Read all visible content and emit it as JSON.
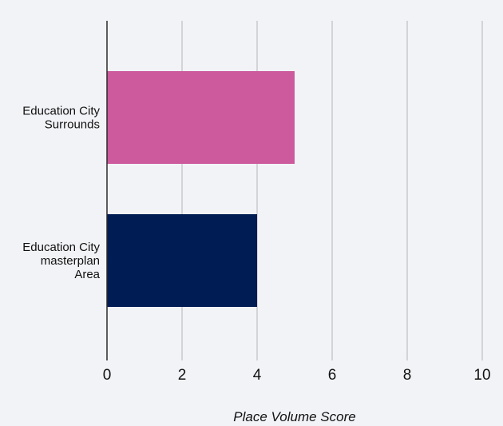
{
  "chart_data": {
    "type": "bar",
    "orientation": "horizontal",
    "categories": [
      [
        "Education City",
        "Surrounds"
      ],
      [
        "Education City",
        "masterplan",
        "Area"
      ]
    ],
    "values": [
      5,
      4
    ],
    "bar_colors": [
      "#cc5a9c",
      "#001c54"
    ],
    "xlabel": "Place Volume Score",
    "xlim": [
      0,
      10
    ],
    "xticks": [
      0,
      2,
      4,
      6,
      8,
      10
    ],
    "grid": true,
    "legend": "none"
  },
  "colors": {
    "background": "#f2f3f7",
    "gridline": "#c7c9ce",
    "axis": "#2b2b2b",
    "text": "#111111"
  }
}
